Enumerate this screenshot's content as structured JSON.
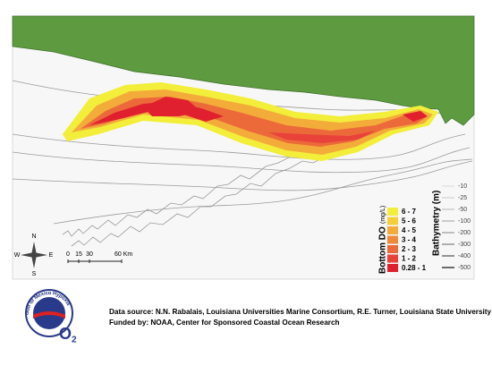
{
  "legend_do": {
    "title": "Bottom DO",
    "unit": "(mg/L)",
    "classes": [
      {
        "label": "6 - 7",
        "color": "#f2ee3a"
      },
      {
        "label": "5 - 6",
        "color": "#f5cf3a"
      },
      {
        "label": "4 - 5",
        "color": "#f3ac3a"
      },
      {
        "label": "3 - 4",
        "color": "#ee8a3a"
      },
      {
        "label": "2 - 3",
        "color": "#ec6a3a"
      },
      {
        "label": "1 - 2",
        "color": "#e8423a"
      },
      {
        "label": "0.28 - 1",
        "color": "#e0202e"
      }
    ]
  },
  "legend_bathymetry": {
    "title": "Bathymetry (m)",
    "levels": [
      "-10",
      "-25",
      "-50",
      "-100",
      "-200",
      "-300",
      "-400",
      "-500"
    ]
  },
  "compass": {
    "n": "N",
    "s": "S",
    "e": "E",
    "w": "W"
  },
  "scale_bar": {
    "labels": [
      "0",
      "15",
      "30",
      "60 Km"
    ]
  },
  "logo": {
    "text": "Gulf of Mexico Hypoxia",
    "symbol": "O",
    "subscript": "2"
  },
  "credits": {
    "source": "Data source: N.N. Rabalais, Louisiana Universities Marine Consortium, R.E. Turner, Louisiana State University",
    "funding": "Funded by: NOAA, Center for Sponsored Coastal Ocean Research"
  }
}
